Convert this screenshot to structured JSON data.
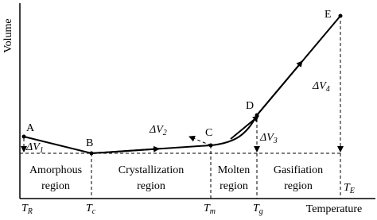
{
  "axes": {
    "y_label": "Volume",
    "x_label": "Temperature"
  },
  "points": [
    "A",
    "B",
    "C",
    "D",
    "E"
  ],
  "deltas": [
    {
      "main": "ΔV",
      "sub": "1"
    },
    {
      "main": "ΔV",
      "sub": "2"
    },
    {
      "main": "ΔV",
      "sub": "3"
    },
    {
      "main": "ΔV",
      "sub": "4"
    }
  ],
  "temperatures": [
    {
      "main": "T",
      "sub": "R"
    },
    {
      "main": "T",
      "sub": "c"
    },
    {
      "main": "T",
      "sub": "m"
    },
    {
      "main": "T",
      "sub": "g"
    },
    {
      "main": "T",
      "sub": "E"
    }
  ],
  "regions": [
    [
      "Amorphous",
      "region"
    ],
    [
      "Crystallization",
      "region"
    ],
    [
      "Molten",
      "region"
    ],
    [
      "Gasifiation",
      "region"
    ]
  ]
}
